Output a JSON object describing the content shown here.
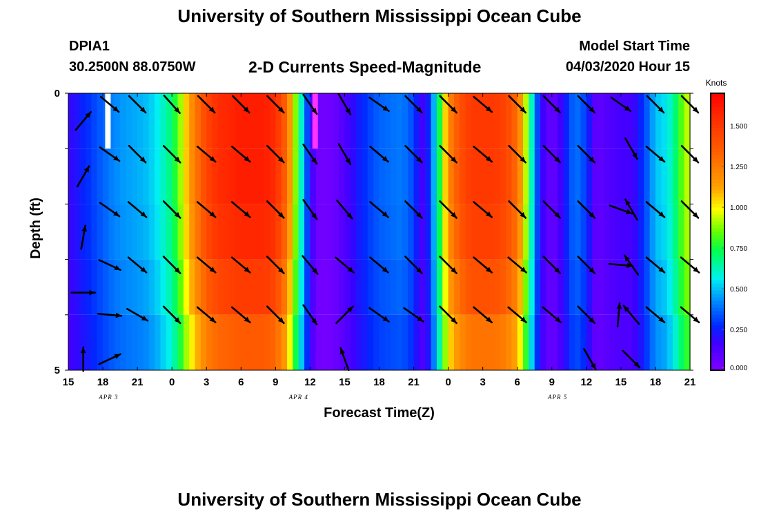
{
  "header": {
    "title": "University of Southern Mississippi Ocean Cube",
    "station_id": "DPIA1",
    "station_coords": "30.2500N 88.0750W",
    "plot_title": "2-D Currents Speed-Magnitude",
    "model_label": "Model Start Time",
    "model_time": "04/03/2020 Hour 15"
  },
  "footer": {
    "title": "University of Southern Mississippi Ocean Cube"
  },
  "chart_data": {
    "type": "heatmap",
    "xlabel": "Forecast Time(Z)",
    "ylabel": "Depth (ft)",
    "x_range": [
      15,
      69
    ],
    "y_range": [
      0,
      5
    ],
    "x_tick_hours": [
      15,
      18,
      21,
      24,
      27,
      30,
      33,
      36,
      39,
      42,
      45,
      48,
      51,
      54,
      57,
      60,
      63,
      66,
      69
    ],
    "x_tick_labels": [
      "15",
      "18",
      "21",
      "0",
      "3",
      "6",
      "9",
      "12",
      "15",
      "18",
      "21",
      "0",
      "3",
      "6",
      "9",
      "12",
      "15",
      "18",
      "21"
    ],
    "y_tick_labels": [
      "0",
      "5"
    ],
    "date_labels": [
      {
        "hour": 18.5,
        "text": "APR 3"
      },
      {
        "hour": 35,
        "text": "APR 4"
      },
      {
        "hour": 57.5,
        "text": "APR 5"
      }
    ],
    "colorbar": {
      "title": "Knots",
      "min": 0,
      "max": 1.7,
      "ticks": [
        "0.000",
        "0.250",
        "0.500",
        "0.750",
        "1.000",
        "1.250",
        "1.500"
      ],
      "tick_values": [
        0,
        0.25,
        0.5,
        0.75,
        1.0,
        1.25,
        1.5
      ]
    },
    "depth_bins_ft": [
      0,
      1,
      2,
      3,
      4,
      5
    ],
    "speed_profile_knots": [
      [
        15,
        0.18
      ],
      [
        15.5,
        0.2
      ],
      [
        16,
        0.24
      ],
      [
        17,
        0.3
      ],
      [
        18,
        0.36
      ],
      [
        19,
        0.42
      ],
      [
        20,
        0.45
      ],
      [
        21,
        0.47
      ],
      [
        22,
        0.5
      ],
      [
        23,
        0.58
      ],
      [
        24,
        0.7
      ],
      [
        24.6,
        0.85
      ],
      [
        25.2,
        1.05
      ],
      [
        26,
        1.25
      ],
      [
        27,
        1.45
      ],
      [
        28,
        1.55
      ],
      [
        30,
        1.6
      ],
      [
        32,
        1.6
      ],
      [
        33,
        1.55
      ],
      [
        34,
        1.3
      ],
      [
        34.5,
        1.0
      ],
      [
        35,
        0.75
      ],
      [
        35.5,
        0.45
      ],
      [
        36,
        0.2
      ],
      [
        36.5,
        0.06
      ],
      [
        37,
        0.03
      ],
      [
        38,
        0.05
      ],
      [
        39,
        0.12
      ],
      [
        40,
        0.22
      ],
      [
        41,
        0.3
      ],
      [
        42,
        0.36
      ],
      [
        43,
        0.38
      ],
      [
        44,
        0.4
      ],
      [
        45,
        0.32
      ],
      [
        45.6,
        0.15
      ],
      [
        46,
        0.15
      ],
      [
        46.5,
        0.35
      ],
      [
        47,
        0.6
      ],
      [
        47.5,
        0.9
      ],
      [
        48,
        1.2
      ],
      [
        49,
        1.4
      ],
      [
        50,
        1.5
      ],
      [
        52,
        1.5
      ],
      [
        53,
        1.45
      ],
      [
        54,
        1.3
      ],
      [
        54.5,
        1.05
      ],
      [
        55,
        0.8
      ],
      [
        55.4,
        0.5
      ],
      [
        56,
        0.2
      ],
      [
        57,
        0.05
      ],
      [
        58,
        0.2
      ],
      [
        59,
        0.4
      ],
      [
        60,
        0.3
      ],
      [
        60.7,
        0.1
      ],
      [
        61,
        0.08
      ],
      [
        62,
        0.12
      ],
      [
        63,
        0.15
      ],
      [
        64,
        0.15
      ],
      [
        65,
        0.3
      ],
      [
        66,
        0.5
      ],
      [
        67,
        0.55
      ],
      [
        68,
        0.75
      ],
      [
        68.5,
        0.9
      ],
      [
        69,
        0.95
      ]
    ],
    "depth_factors": [
      1.0,
      1.0,
      0.98,
      0.93,
      0.85,
      0.6
    ],
    "white_cell": {
      "hour": 18.2,
      "depth_bin": 0
    },
    "magenta_cell": {
      "hour": 36.2,
      "depth_bin": 0
    },
    "current_vectors": [
      {
        "hour": 16.3,
        "depth": 0.5,
        "angle": -50
      },
      {
        "hour": 16.3,
        "depth": 1.5,
        "angle": -60
      },
      {
        "hour": 16.3,
        "depth": 2.6,
        "angle": -80
      },
      {
        "hour": 16.3,
        "depth": 4.8,
        "angle": -90
      },
      {
        "hour": 16.3,
        "depth": 3.6,
        "angle": 0
      },
      {
        "hour": 18.6,
        "depth": 0.2,
        "angle": 40
      },
      {
        "hour": 18.6,
        "depth": 1.1,
        "angle": 35
      },
      {
        "hour": 18.6,
        "depth": 2.1,
        "angle": 35
      },
      {
        "hour": 18.6,
        "depth": 3.1,
        "angle": 25
      },
      {
        "hour": 18.6,
        "depth": 4.0,
        "angle": 5
      },
      {
        "hour": 18.6,
        "depth": 4.8,
        "angle": -25
      },
      {
        "hour": 21,
        "depth": 0.2,
        "angle": 45
      },
      {
        "hour": 21,
        "depth": 1.1,
        "angle": 45
      },
      {
        "hour": 21,
        "depth": 2.1,
        "angle": 40
      },
      {
        "hour": 21,
        "depth": 3.1,
        "angle": 40
      },
      {
        "hour": 21,
        "depth": 4.0,
        "angle": 30
      },
      {
        "hour": 24,
        "depth": 0.2,
        "angle": 48
      },
      {
        "hour": 24,
        "depth": 1.1,
        "angle": 45
      },
      {
        "hour": 24,
        "depth": 2.1,
        "angle": 45
      },
      {
        "hour": 24,
        "depth": 3.1,
        "angle": 45
      },
      {
        "hour": 24,
        "depth": 4.0,
        "angle": 45
      },
      {
        "hour": 27,
        "depth": 0.2,
        "angle": 45
      },
      {
        "hour": 27,
        "depth": 1.1,
        "angle": 40
      },
      {
        "hour": 27,
        "depth": 2.1,
        "angle": 40
      },
      {
        "hour": 27,
        "depth": 3.1,
        "angle": 40
      },
      {
        "hour": 27,
        "depth": 4.0,
        "angle": 40
      },
      {
        "hour": 30,
        "depth": 0.2,
        "angle": 45
      },
      {
        "hour": 30,
        "depth": 1.1,
        "angle": 40
      },
      {
        "hour": 30,
        "depth": 2.1,
        "angle": 40
      },
      {
        "hour": 30,
        "depth": 3.1,
        "angle": 40
      },
      {
        "hour": 30,
        "depth": 4.0,
        "angle": 40
      },
      {
        "hour": 33,
        "depth": 0.2,
        "angle": 45
      },
      {
        "hour": 33,
        "depth": 1.1,
        "angle": 45
      },
      {
        "hour": 33,
        "depth": 2.1,
        "angle": 45
      },
      {
        "hour": 33,
        "depth": 3.1,
        "angle": 45
      },
      {
        "hour": 33,
        "depth": 4.0,
        "angle": 45
      },
      {
        "hour": 36,
        "depth": 0.2,
        "angle": 55
      },
      {
        "hour": 36,
        "depth": 1.1,
        "angle": 55
      },
      {
        "hour": 36,
        "depth": 2.1,
        "angle": 55
      },
      {
        "hour": 36,
        "depth": 3.1,
        "angle": 50
      },
      {
        "hour": 36,
        "depth": 4.0,
        "angle": 55
      },
      {
        "hour": 39,
        "depth": 0.2,
        "angle": 60
      },
      {
        "hour": 39,
        "depth": 1.1,
        "angle": 60
      },
      {
        "hour": 39,
        "depth": 2.1,
        "angle": 50
      },
      {
        "hour": 39,
        "depth": 3.1,
        "angle": 40
      },
      {
        "hour": 39,
        "depth": 4.0,
        "angle": -45
      },
      {
        "hour": 39,
        "depth": 4.8,
        "angle": -110
      },
      {
        "hour": 42,
        "depth": 0.2,
        "angle": 35
      },
      {
        "hour": 42,
        "depth": 1.1,
        "angle": 40
      },
      {
        "hour": 42,
        "depth": 2.1,
        "angle": 40
      },
      {
        "hour": 42,
        "depth": 3.1,
        "angle": 40
      },
      {
        "hour": 42,
        "depth": 4.0,
        "angle": 35
      },
      {
        "hour": 45,
        "depth": 0.2,
        "angle": 45
      },
      {
        "hour": 45,
        "depth": 1.1,
        "angle": 45
      },
      {
        "hour": 45,
        "depth": 2.1,
        "angle": 45
      },
      {
        "hour": 45,
        "depth": 3.1,
        "angle": 45
      },
      {
        "hour": 45,
        "depth": 4.0,
        "angle": 35
      },
      {
        "hour": 48,
        "depth": 0.2,
        "angle": 45
      },
      {
        "hour": 48,
        "depth": 1.1,
        "angle": 45
      },
      {
        "hour": 48,
        "depth": 2.1,
        "angle": 45
      },
      {
        "hour": 48,
        "depth": 3.1,
        "angle": 45
      },
      {
        "hour": 48,
        "depth": 4.0,
        "angle": 45
      },
      {
        "hour": 51,
        "depth": 0.2,
        "angle": 40
      },
      {
        "hour": 51,
        "depth": 1.1,
        "angle": 40
      },
      {
        "hour": 51,
        "depth": 2.1,
        "angle": 40
      },
      {
        "hour": 51,
        "depth": 3.1,
        "angle": 40
      },
      {
        "hour": 51,
        "depth": 4.0,
        "angle": 40
      },
      {
        "hour": 54,
        "depth": 0.2,
        "angle": 45
      },
      {
        "hour": 54,
        "depth": 1.1,
        "angle": 45
      },
      {
        "hour": 54,
        "depth": 2.1,
        "angle": 45
      },
      {
        "hour": 54,
        "depth": 3.1,
        "angle": 40
      },
      {
        "hour": 54,
        "depth": 4.0,
        "angle": 40
      },
      {
        "hour": 57,
        "depth": 0.2,
        "angle": 45
      },
      {
        "hour": 57,
        "depth": 1.1,
        "angle": 45
      },
      {
        "hour": 57,
        "depth": 2.1,
        "angle": 45
      },
      {
        "hour": 57,
        "depth": 3.1,
        "angle": 45
      },
      {
        "hour": 57,
        "depth": 4.0,
        "angle": 40
      },
      {
        "hour": 60,
        "depth": 0.2,
        "angle": 45
      },
      {
        "hour": 60,
        "depth": 1.1,
        "angle": 45
      },
      {
        "hour": 60,
        "depth": 2.1,
        "angle": 45
      },
      {
        "hour": 60,
        "depth": 3.1,
        "angle": 45
      },
      {
        "hour": 60,
        "depth": 4.0,
        "angle": 45
      },
      {
        "hour": 60.3,
        "depth": 4.8,
        "angle": 60
      },
      {
        "hour": 63,
        "depth": 2.1,
        "angle": 20
      },
      {
        "hour": 63,
        "depth": 3.1,
        "angle": 5
      },
      {
        "hour": 62.8,
        "depth": 4.0,
        "angle": -85
      },
      {
        "hour": 63,
        "depth": 0.2,
        "angle": 35
      },
      {
        "hour": 63.9,
        "depth": 1.0,
        "angle": 60
      },
      {
        "hour": 63.9,
        "depth": 2.1,
        "angle": -120
      },
      {
        "hour": 63.9,
        "depth": 3.1,
        "angle": -125
      },
      {
        "hour": 63.9,
        "depth": 4.0,
        "angle": -130
      },
      {
        "hour": 63.9,
        "depth": 4.8,
        "angle": 45
      },
      {
        "hour": 66,
        "depth": 0.2,
        "angle": 45
      },
      {
        "hour": 66,
        "depth": 1.1,
        "angle": 40
      },
      {
        "hour": 66,
        "depth": 2.1,
        "angle": 40
      },
      {
        "hour": 66,
        "depth": 3.1,
        "angle": 40
      },
      {
        "hour": 66,
        "depth": 4.0,
        "angle": 40
      },
      {
        "hour": 69,
        "depth": 0.2,
        "angle": 45
      },
      {
        "hour": 69,
        "depth": 1.1,
        "angle": 45
      },
      {
        "hour": 69,
        "depth": 2.1,
        "angle": 45
      },
      {
        "hour": 69,
        "depth": 3.1,
        "angle": 40
      },
      {
        "hour": 69,
        "depth": 4.0,
        "angle": 40
      }
    ]
  }
}
